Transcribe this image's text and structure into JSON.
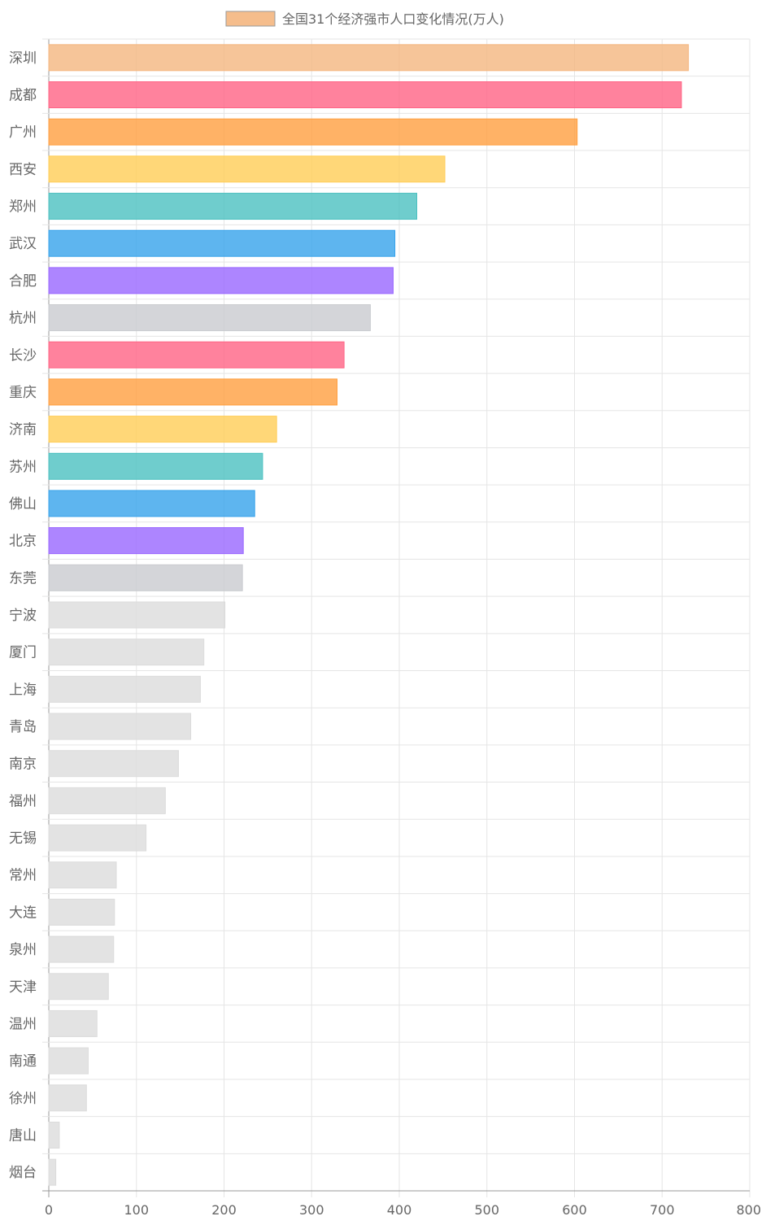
{
  "chart_data": {
    "type": "bar",
    "orientation": "horizontal",
    "legend": {
      "label": "全国31个经济强市人口变化情况(万人)",
      "color": "#F4B680",
      "placement": "top-center"
    },
    "categories": [
      "深圳",
      "成都",
      "广州",
      "西安",
      "郑州",
      "武汉",
      "合肥",
      "杭州",
      "长沙",
      "重庆",
      "济南",
      "苏州",
      "佛山",
      "北京",
      "东莞",
      "宁波",
      "厦门",
      "上海",
      "青岛",
      "南京",
      "福州",
      "无锡",
      "常州",
      "大连",
      "泉州",
      "天津",
      "温州",
      "南通",
      "徐州",
      "唐山",
      "烟台"
    ],
    "values": [
      730,
      722,
      603,
      452,
      420,
      395,
      393,
      367,
      337,
      329,
      260,
      244,
      235,
      222,
      221,
      201,
      177,
      173,
      162,
      148,
      133,
      111,
      77,
      75,
      74,
      68,
      55,
      45,
      43,
      12,
      8
    ],
    "colors": [
      "#F4B680",
      "#FF6384",
      "#FF9F40",
      "#FFCD56",
      "#4BC0C0",
      "#36A2EB",
      "#9966FF",
      "#C9CBCF",
      "#FF6384",
      "#FF9F40",
      "#FFCD56",
      "#4BC0C0",
      "#36A2EB",
      "#9966FF",
      "#C9CBCF",
      "#DCDCDC",
      "#DCDCDC",
      "#DCDCDC",
      "#DCDCDC",
      "#DCDCDC",
      "#DCDCDC",
      "#DCDCDC",
      "#DCDCDC",
      "#DCDCDC",
      "#DCDCDC",
      "#DCDCDC",
      "#DCDCDC",
      "#DCDCDC",
      "#DCDCDC",
      "#DCDCDC",
      "#DCDCDC"
    ],
    "xlim": [
      0,
      800
    ],
    "xticks": [
      0,
      100,
      200,
      300,
      400,
      500,
      600,
      700,
      800
    ],
    "grid": true
  }
}
